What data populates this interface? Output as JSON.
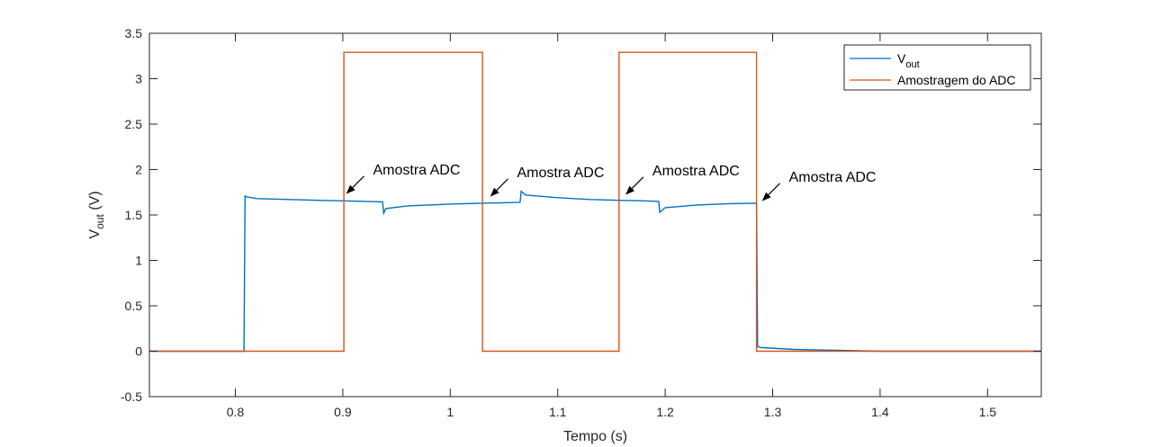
{
  "chart_data": {
    "type": "line",
    "xlabel": "Tempo (s)",
    "ylabel": {
      "main": "V",
      "sub": "out",
      "suffix": " (V)"
    },
    "xlim": [
      0.72,
      1.55
    ],
    "ylim": [
      -0.5,
      3.5
    ],
    "xticks": [
      0.8,
      0.9,
      1,
      1.1,
      1.2,
      1.3,
      1.4,
      1.5
    ],
    "xtick_labels": [
      "0.8",
      "0.9",
      "1",
      "1.1",
      "1.2",
      "1.3",
      "1.4",
      "1.5"
    ],
    "yticks": [
      -0.5,
      0,
      0.5,
      1,
      1.5,
      2,
      2.5,
      3,
      3.5
    ],
    "ytick_labels": [
      "-0.5",
      "0",
      "0.5",
      "1",
      "1.5",
      "2",
      "2.5",
      "3",
      "3.5"
    ],
    "grid": false,
    "legend_position": "top-right",
    "series": [
      {
        "name": {
          "main": "V",
          "sub": "out"
        },
        "color": "#0072BD",
        "x": [
          0.72,
          0.8,
          0.808,
          0.809,
          0.81,
          0.82,
          0.85,
          0.88,
          0.9,
          0.92,
          0.937,
          0.938,
          0.94,
          0.96,
          1.0,
          1.03,
          1.05,
          1.065,
          1.066,
          1.07,
          1.1,
          1.13,
          1.16,
          1.18,
          1.194,
          1.195,
          1.2,
          1.23,
          1.26,
          1.285,
          1.286,
          1.29,
          1.32,
          1.36,
          1.4,
          1.55
        ],
        "y": [
          0.0,
          0.0,
          0.0,
          1.71,
          1.7,
          1.68,
          1.67,
          1.66,
          1.655,
          1.65,
          1.645,
          1.52,
          1.57,
          1.6,
          1.62,
          1.63,
          1.635,
          1.64,
          1.76,
          1.72,
          1.69,
          1.67,
          1.66,
          1.655,
          1.65,
          1.53,
          1.58,
          1.61,
          1.625,
          1.63,
          0.05,
          0.04,
          0.02,
          0.01,
          0.0,
          0.0
        ]
      },
      {
        "name": "Amostragem do ADC",
        "color": "#D95319",
        "x": [
          0.72,
          0.901,
          0.901,
          1.03,
          1.03,
          1.157,
          1.157,
          1.285,
          1.285,
          1.55
        ],
        "y": [
          0.0,
          0.0,
          3.29,
          3.29,
          0.0,
          0.0,
          3.29,
          3.29,
          0.0,
          0.0
        ]
      }
    ],
    "annotations": [
      {
        "text": "Amostra ADC",
        "x": 0.903,
        "y": 1.73
      },
      {
        "text": "Amostra ADC",
        "x": 1.037,
        "y": 1.7
      },
      {
        "text": "Amostra ADC",
        "x": 1.163,
        "y": 1.72
      },
      {
        "text": "Amostra ADC",
        "x": 1.29,
        "y": 1.65
      }
    ]
  }
}
